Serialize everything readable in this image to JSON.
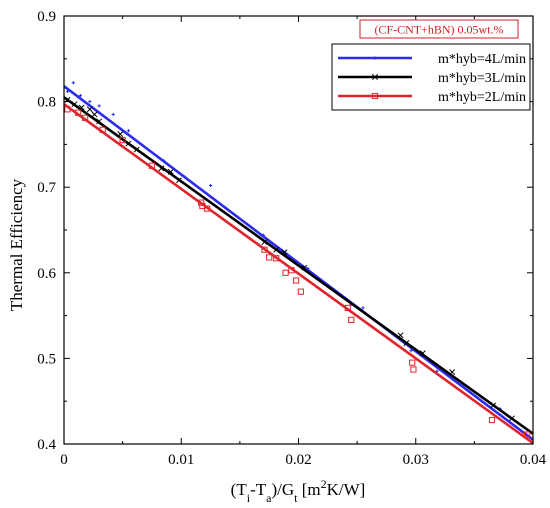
{
  "chart_data": {
    "type": "scatter",
    "annotation": "(CF-CNT+hBN) 0.05wt.%",
    "ylabel": "Thermal Efficiency",
    "xlabel": {
      "main": "(T",
      "sub1": "i",
      "mid": "-T",
      "sub2": "a",
      "mid2": ")/G",
      "sub3": "t",
      "unit_open": " [m",
      "sup": "2",
      "unit_close": "K/W]"
    },
    "xlim": [
      0,
      0.04
    ],
    "ylim": [
      0.4,
      0.9
    ],
    "x_ticks": [
      "0",
      "0.01",
      "0.02",
      "0.03",
      "0.04"
    ],
    "y_ticks": [
      "0.4",
      "0.5",
      "0.6",
      "0.7",
      "0.8",
      "0.9"
    ],
    "grid": false,
    "legend_position": "top-right",
    "series": [
      {
        "name": "m*hyb=4L/min",
        "color": "#2b2bf0",
        "marker": "plus",
        "fit": [
          [
            0,
            0.818
          ],
          [
            0.04,
            0.405
          ]
        ],
        "points": [
          [
            0.0003,
            0.812
          ],
          [
            0.0008,
            0.822
          ],
          [
            0.0014,
            0.807
          ],
          [
            0.0022,
            0.8
          ],
          [
            0.003,
            0.795
          ],
          [
            0.0042,
            0.785
          ],
          [
            0.0055,
            0.766
          ],
          [
            0.0085,
            0.731
          ],
          [
            0.0103,
            0.712
          ],
          [
            0.0125,
            0.702
          ],
          [
            0.017,
            0.644
          ],
          [
            0.0187,
            0.622
          ],
          [
            0.0208,
            0.605
          ],
          [
            0.0245,
            0.563
          ],
          [
            0.0255,
            0.559
          ],
          [
            0.0296,
            0.509
          ],
          [
            0.0318,
            0.485
          ],
          [
            0.0372,
            0.441
          ]
        ]
      },
      {
        "name": "m*hyb=3L/min",
        "color": "#000000",
        "marker": "x",
        "fit": [
          [
            0,
            0.805
          ],
          [
            0.04,
            0.412
          ]
        ],
        "points": [
          [
            0.0003,
            0.802
          ],
          [
            0.0009,
            0.797
          ],
          [
            0.0015,
            0.793
          ],
          [
            0.0022,
            0.791
          ],
          [
            0.0026,
            0.785
          ],
          [
            0.003,
            0.777
          ],
          [
            0.0048,
            0.762
          ],
          [
            0.0055,
            0.751
          ],
          [
            0.0062,
            0.744
          ],
          [
            0.0083,
            0.722
          ],
          [
            0.0091,
            0.718
          ],
          [
            0.0098,
            0.708
          ],
          [
            0.0171,
            0.636
          ],
          [
            0.0181,
            0.627
          ],
          [
            0.0188,
            0.624
          ],
          [
            0.0205,
            0.606
          ],
          [
            0.0287,
            0.527
          ],
          [
            0.0292,
            0.518
          ],
          [
            0.0306,
            0.506
          ],
          [
            0.0331,
            0.484
          ],
          [
            0.0366,
            0.445
          ],
          [
            0.0382,
            0.43
          ]
        ]
      },
      {
        "name": "m*hyb=2L/min",
        "color": "#e0242c",
        "marker": "square",
        "fit": [
          [
            0,
            0.797
          ],
          [
            0.04,
            0.401
          ]
        ],
        "points": [
          [
            0.0003,
            0.791
          ],
          [
            0.0012,
            0.787
          ],
          [
            0.0018,
            0.781
          ],
          [
            0.0033,
            0.767
          ],
          [
            0.005,
            0.755
          ],
          [
            0.0075,
            0.725
          ],
          [
            0.0117,
            0.682
          ],
          [
            0.0118,
            0.678
          ],
          [
            0.0122,
            0.675
          ],
          [
            0.0171,
            0.627
          ],
          [
            0.0175,
            0.618
          ],
          [
            0.0181,
            0.617
          ],
          [
            0.0189,
            0.6
          ],
          [
            0.0194,
            0.603
          ],
          [
            0.0198,
            0.591
          ],
          [
            0.0202,
            0.578
          ],
          [
            0.0242,
            0.559
          ],
          [
            0.0245,
            0.545
          ],
          [
            0.0297,
            0.495
          ],
          [
            0.0298,
            0.487
          ],
          [
            0.0365,
            0.428
          ],
          [
            0.0395,
            0.411
          ]
        ]
      }
    ]
  }
}
